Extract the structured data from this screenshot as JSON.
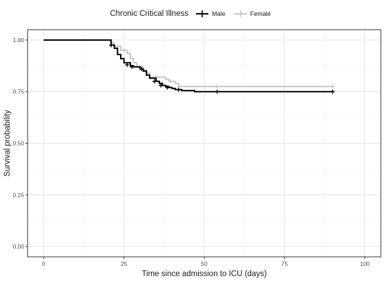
{
  "chart_data": {
    "type": "line",
    "subtype": "kaplan-meier step",
    "legend_title": "Chronic Critical Illness",
    "legend_position": "top",
    "xlabel": "Time since admission to ICU (days)",
    "ylabel": "Survival probability",
    "xlim": [
      -5,
      105
    ],
    "ylim": [
      -0.05,
      1.05
    ],
    "xticks": [
      0,
      25,
      50,
      75,
      100
    ],
    "xtick_labels": [
      "0",
      "25",
      "50",
      "75",
      "100"
    ],
    "yticks": [
      0,
      0.25,
      0.5,
      0.75,
      1
    ],
    "ytick_labels": [
      "0.00",
      "0.25",
      "0.50",
      "0.75",
      "1.00"
    ],
    "grid": true,
    "series": [
      {
        "name": "Male",
        "color": "#000000",
        "steps": [
          [
            0,
            1.0
          ],
          [
            21,
            0.975
          ],
          [
            22,
            0.96
          ],
          [
            23,
            0.93
          ],
          [
            24,
            0.91
          ],
          [
            25,
            0.89
          ],
          [
            27,
            0.875
          ],
          [
            28,
            0.87
          ],
          [
            30,
            0.86
          ],
          [
            31,
            0.85
          ],
          [
            32,
            0.83
          ],
          [
            33,
            0.815
          ],
          [
            35,
            0.8
          ],
          [
            36,
            0.79
          ],
          [
            37,
            0.78
          ],
          [
            38,
            0.775
          ],
          [
            39,
            0.77
          ],
          [
            40,
            0.765
          ],
          [
            41,
            0.76
          ],
          [
            43,
            0.755
          ],
          [
            47,
            0.75
          ],
          [
            90,
            0.75
          ]
        ],
        "censored": [
          [
            21,
            0.975
          ],
          [
            26,
            0.88
          ],
          [
            27.5,
            0.87
          ],
          [
            30.5,
            0.86
          ],
          [
            34.5,
            0.8
          ],
          [
            36.5,
            0.78
          ],
          [
            38.5,
            0.77
          ],
          [
            42,
            0.76
          ],
          [
            54,
            0.75
          ],
          [
            90,
            0.75
          ]
        ]
      },
      {
        "name": "Female",
        "color": "#c8c8c8",
        "steps": [
          [
            0,
            1.0
          ],
          [
            21,
            0.985
          ],
          [
            22,
            0.97
          ],
          [
            24,
            0.95
          ],
          [
            26,
            0.935
          ],
          [
            27,
            0.91
          ],
          [
            28,
            0.89
          ],
          [
            29,
            0.87
          ],
          [
            31,
            0.855
          ],
          [
            32,
            0.84
          ],
          [
            33,
            0.82
          ],
          [
            38,
            0.81
          ],
          [
            39,
            0.8
          ],
          [
            41,
            0.79
          ],
          [
            42,
            0.775
          ],
          [
            90,
            0.775
          ]
        ],
        "censored": [
          [
            21.5,
            0.985
          ],
          [
            25,
            0.95
          ],
          [
            30,
            0.87
          ],
          [
            35,
            0.82
          ],
          [
            39.5,
            0.8
          ],
          [
            54,
            0.775
          ],
          [
            90,
            0.775
          ]
        ]
      }
    ]
  }
}
